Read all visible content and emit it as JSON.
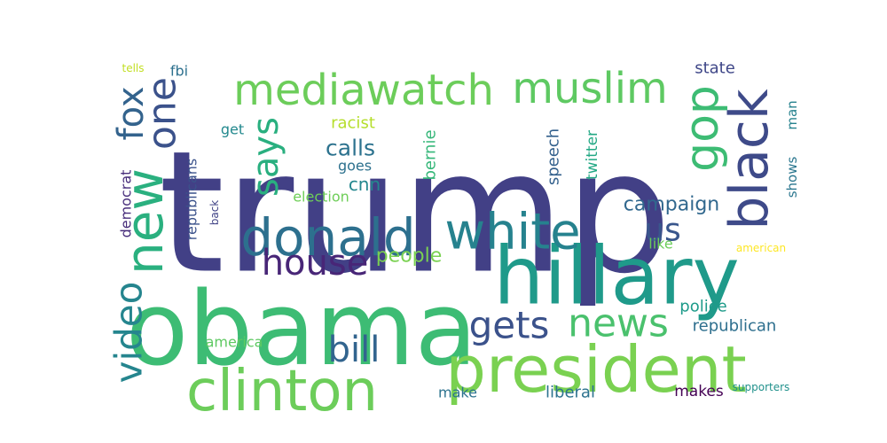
{
  "words": [
    {
      "text": "trump",
      "color": "#424086"
    },
    {
      "text": "obama",
      "color": "#3dbc74"
    },
    {
      "text": "hillary",
      "color": "#1f9a8a"
    },
    {
      "text": "president",
      "color": "#7ad151"
    },
    {
      "text": "clinton",
      "color": "#6ccd5a"
    },
    {
      "text": "donald",
      "color": "#2d708e"
    },
    {
      "text": "white",
      "color": "#26828e"
    },
    {
      "text": "new",
      "color": "#2ab07f"
    },
    {
      "text": "black",
      "color": "#3e4a89"
    },
    {
      "text": "mediawatch",
      "color": "#6ccd5a"
    },
    {
      "text": "muslim",
      "color": "#5ec962"
    },
    {
      "text": "gop",
      "color": "#3dbc74"
    },
    {
      "text": "one",
      "color": "#3b528b"
    },
    {
      "text": "fox",
      "color": "#33638d"
    },
    {
      "text": "says",
      "color": "#29af7f"
    },
    {
      "text": "news",
      "color": "#4ac16d"
    },
    {
      "text": "gets",
      "color": "#3b528b"
    },
    {
      "text": "house",
      "color": "#482677"
    },
    {
      "text": "video",
      "color": "#25858e"
    },
    {
      "text": "bill",
      "color": "#32648e"
    },
    {
      "text": "us",
      "color": "#39568c"
    },
    {
      "text": "calls",
      "color": "#2c728e"
    },
    {
      "text": "campaign",
      "color": "#31688e"
    },
    {
      "text": "people",
      "color": "#7ad151"
    },
    {
      "text": "cnn",
      "color": "#24878e"
    },
    {
      "text": "police",
      "color": "#1e9b8a"
    },
    {
      "text": "republican",
      "color": "#2e6f8e"
    },
    {
      "text": "state",
      "color": "#3f4788"
    },
    {
      "text": "racist",
      "color": "#b5de2b"
    },
    {
      "text": "bernie",
      "color": "#35b779"
    },
    {
      "text": "speech",
      "color": "#34618d"
    },
    {
      "text": "twitter",
      "color": "#22a884"
    },
    {
      "text": "goes",
      "color": "#2d718e"
    },
    {
      "text": "election",
      "color": "#6ece58"
    },
    {
      "text": "fbi",
      "color": "#2d708e"
    },
    {
      "text": "man",
      "color": "#26828e"
    },
    {
      "text": "shows",
      "color": "#2a768e"
    },
    {
      "text": "democrat",
      "color": "#472d7b"
    },
    {
      "text": "republicans",
      "color": "#3b528b"
    },
    {
      "text": "get",
      "color": "#23898e"
    },
    {
      "text": "back",
      "color": "#414487"
    },
    {
      "text": "like",
      "color": "#6ccd5a"
    },
    {
      "text": "america",
      "color": "#5ec962"
    },
    {
      "text": "make",
      "color": "#2c728e"
    },
    {
      "text": "liberal",
      "color": "#2c728e"
    },
    {
      "text": "makes",
      "color": "#440154"
    },
    {
      "text": "supporters",
      "color": "#21918c"
    },
    {
      "text": "american",
      "color": "#fde725"
    },
    {
      "text": "tells",
      "color": "#c2df23"
    }
  ]
}
